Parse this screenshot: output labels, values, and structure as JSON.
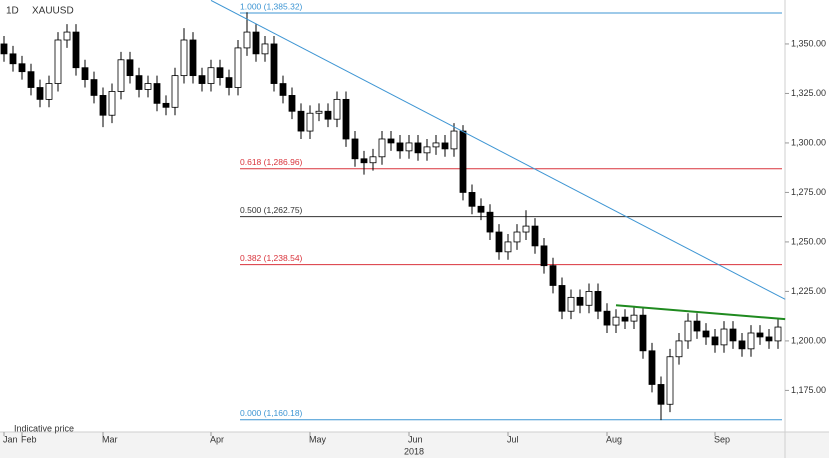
{
  "chart_data": {
    "type": "candlestick",
    "interval": "1D",
    "symbol": "XAUUSD",
    "footnote": "Indicative price",
    "xlabel": "2018",
    "categories": [
      "Jan",
      null,
      "Feb",
      null,
      null,
      null,
      null,
      null,
      null,
      null,
      null,
      "Mar",
      null,
      null,
      null,
      null,
      null,
      null,
      null,
      null,
      null,
      null,
      null,
      "Apr",
      null,
      null,
      null,
      null,
      null,
      null,
      null,
      null,
      null,
      null,
      "May",
      null,
      null,
      null,
      null,
      null,
      null,
      null,
      null,
      null,
      null,
      "Jun",
      null,
      null,
      null,
      null,
      null,
      null,
      null,
      null,
      null,
      null,
      "Jul",
      null,
      null,
      null,
      null,
      null,
      null,
      null,
      null,
      null,
      null,
      "Aug",
      null,
      null,
      null,
      null,
      null,
      null,
      null,
      null,
      null,
      null,
      null,
      "Sep",
      null,
      null,
      null,
      null,
      null,
      null,
      null
    ],
    "open": [
      1350,
      1345,
      1340,
      1336,
      1328,
      1322,
      1330,
      1352,
      1356,
      1338,
      1332,
      1324,
      1314,
      1326,
      1342,
      1334,
      1327,
      1330,
      1320,
      1318,
      1334,
      1352,
      1334,
      1330,
      1338,
      1333,
      1328,
      1348,
      1356,
      1345,
      1350,
      1330,
      1324,
      1316,
      1306,
      1315,
      1316,
      1312,
      1322,
      1302,
      1292,
      1290,
      1293,
      1302,
      1300,
      1296,
      1300,
      1295,
      1298,
      1300,
      1297,
      1306,
      1275,
      1268,
      1265,
      1255,
      1245,
      1250,
      1255,
      1258,
      1248,
      1238,
      1228,
      1215,
      1222,
      1218,
      1225,
      1215,
      1208,
      1212,
      1210,
      1213,
      1195,
      1178,
      1168,
      1192,
      1200,
      1210,
      1205,
      1202,
      1198,
      1206,
      1200,
      1196,
      1204,
      1202,
      1200
    ],
    "high": [
      1354,
      1349,
      1344,
      1340,
      1332,
      1334,
      1356,
      1360,
      1360,
      1342,
      1336,
      1328,
      1330,
      1346,
      1346,
      1338,
      1334,
      1334,
      1324,
      1338,
      1358,
      1356,
      1338,
      1342,
      1342,
      1337,
      1352,
      1366,
      1360,
      1354,
      1354,
      1334,
      1328,
      1320,
      1319,
      1320,
      1320,
      1326,
      1326,
      1306,
      1296,
      1297,
      1306,
      1306,
      1304,
      1304,
      1304,
      1302,
      1304,
      1304,
      1310,
      1309,
      1279,
      1272,
      1269,
      1259,
      1254,
      1259,
      1266,
      1262,
      1252,
      1242,
      1232,
      1226,
      1226,
      1229,
      1229,
      1219,
      1216,
      1216,
      1217,
      1217,
      1199,
      1182,
      1196,
      1204,
      1214,
      1214,
      1209,
      1206,
      1210,
      1210,
      1204,
      1208,
      1208,
      1206,
      1211
    ],
    "low": [
      1341,
      1336,
      1332,
      1324,
      1318,
      1318,
      1326,
      1348,
      1334,
      1328,
      1320,
      1308,
      1310,
      1322,
      1330,
      1323,
      1323,
      1316,
      1314,
      1314,
      1330,
      1330,
      1326,
      1326,
      1329,
      1324,
      1324,
      1344,
      1341,
      1341,
      1326,
      1320,
      1312,
      1302,
      1302,
      1311,
      1308,
      1308,
      1298,
      1288,
      1284,
      1286,
      1289,
      1296,
      1292,
      1292,
      1291,
      1291,
      1294,
      1293,
      1293,
      1271,
      1264,
      1261,
      1251,
      1241,
      1241,
      1246,
      1251,
      1244,
      1234,
      1224,
      1211,
      1211,
      1214,
      1214,
      1211,
      1204,
      1204,
      1206,
      1206,
      1191,
      1174,
      1160,
      1164,
      1188,
      1196,
      1201,
      1198,
      1194,
      1194,
      1196,
      1192,
      1192,
      1198,
      1196,
      1196
    ],
    "close": [
      1345,
      1340,
      1336,
      1328,
      1322,
      1330,
      1352,
      1356,
      1338,
      1332,
      1324,
      1314,
      1326,
      1342,
      1334,
      1327,
      1330,
      1320,
      1318,
      1334,
      1352,
      1334,
      1330,
      1338,
      1333,
      1328,
      1348,
      1356,
      1345,
      1350,
      1330,
      1324,
      1316,
      1306,
      1315,
      1316,
      1312,
      1322,
      1302,
      1292,
      1290,
      1293,
      1302,
      1300,
      1296,
      1300,
      1295,
      1298,
      1300,
      1297,
      1306,
      1275,
      1268,
      1265,
      1255,
      1245,
      1250,
      1255,
      1258,
      1248,
      1238,
      1228,
      1215,
      1222,
      1218,
      1225,
      1215,
      1208,
      1212,
      1210,
      1213,
      1195,
      1178,
      1168,
      1192,
      1200,
      1210,
      1205,
      1202,
      1198,
      1206,
      1200,
      1196,
      1204,
      1202,
      1200,
      1207
    ],
    "up_color": "#ffffff",
    "down_color": "#000000",
    "ylim": [
      1155,
      1372.2
    ],
    "yticks": [
      {
        "value": 1175,
        "label": "1,175.00"
      },
      {
        "value": 1200,
        "label": "1,200.00"
      },
      {
        "value": 1225,
        "label": "1,225.00"
      },
      {
        "value": 1250,
        "label": "1,250.00"
      },
      {
        "value": 1275,
        "label": "1,275.00"
      },
      {
        "value": 1300,
        "label": "1,300.00"
      },
      {
        "value": 1325,
        "label": "1,325.00"
      },
      {
        "value": 1350,
        "label": "1,350.00"
      }
    ],
    "grid": false,
    "fib_levels": [
      {
        "label": "1.000 (1,385.32)",
        "value": 1385.32,
        "color": "#3d95d3"
      },
      {
        "label": "0.618 (1,286.96)",
        "value": 1286.96,
        "color": "#d9333b"
      },
      {
        "label": "0.500 (1,262.75)",
        "value": 1262.75,
        "color": "#333333"
      },
      {
        "label": "0.382 (1,238.54)",
        "value": 1238.54,
        "color": "#d9333b"
      },
      {
        "label": "0.000 (1,160.18)",
        "value": 1160.18,
        "color": "#3d95d3"
      }
    ],
    "trendlines": [
      {
        "color": "#3d95d3",
        "points": [
          [
            23,
            1372
          ],
          [
            86.8,
            1221
          ]
        ]
      },
      {
        "color": "#1f8a1f",
        "points": [
          [
            68,
            1218
          ],
          [
            86.8,
            1211
          ]
        ]
      }
    ]
  }
}
